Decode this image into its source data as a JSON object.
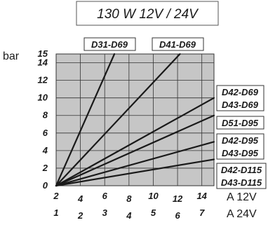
{
  "chart_data": {
    "type": "line",
    "title": "130 W  12V / 24V",
    "ylabel": "bar",
    "ylim": [
      0,
      15
    ],
    "y_ticks": [
      "0",
      "2",
      "4",
      "6",
      "8",
      "10",
      "12",
      "14",
      "15"
    ],
    "xlim": [
      2,
      14
    ],
    "x_ticks_12v": [
      "2",
      "4",
      "6",
      "8",
      "10",
      "12",
      "14"
    ],
    "x_ticks_24v": [
      "1",
      "2",
      "3",
      "4",
      "5",
      "6",
      "7"
    ],
    "x_unit_12v": "A 12V",
    "x_unit_24v": "A 24V",
    "grid": true,
    "series": [
      {
        "name": "D31-D69",
        "x": [
          2,
          6.8
        ],
        "y": [
          0,
          15
        ]
      },
      {
        "name": "D41-D69",
        "x": [
          2,
          12.2
        ],
        "y": [
          0,
          15
        ]
      },
      {
        "name": "D42-D69 / D43-D69",
        "x": [
          2,
          15
        ],
        "y": [
          0,
          10
        ]
      },
      {
        "name": "D51-D95 / D42-D95 / D43-D95",
        "x": [
          2,
          15
        ],
        "y": [
          0,
          8
        ]
      },
      {
        "name": "D42-D115",
        "x": [
          2,
          15
        ],
        "y": [
          0,
          5
        ]
      },
      {
        "name": "D43-D115",
        "x": [
          2,
          15
        ],
        "y": [
          0,
          3
        ]
      }
    ],
    "labels": {
      "top1": "D31-D69",
      "top2": "D41-D69",
      "r1a": "D42-D69",
      "r1b": "D43-D69",
      "r2": "D51-D95",
      "r3a": "D42-D95",
      "r3b": "D43-D95",
      "r4a": "D42-D115",
      "r4b": "D43-D115"
    }
  }
}
